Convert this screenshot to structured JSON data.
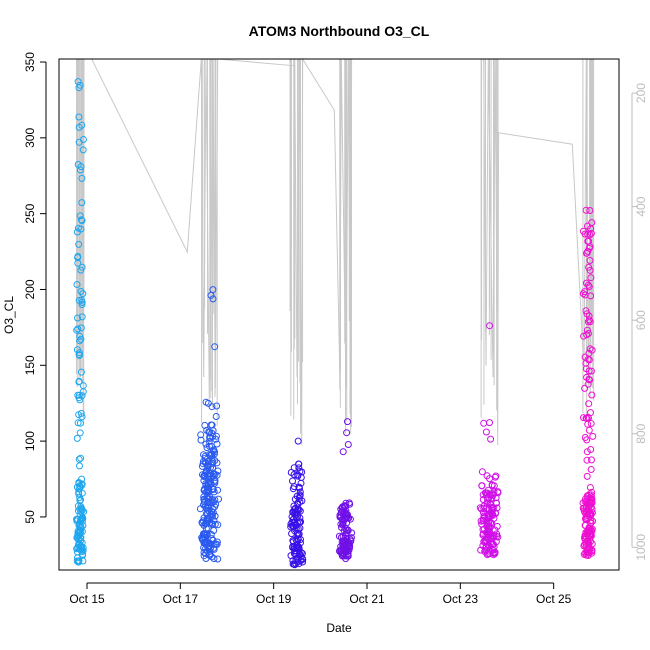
{
  "chart_data": {
    "type": "scatter",
    "title": "ATOM3 Northbound O3_CL",
    "xlabel": "Date",
    "ylabel": "O3_CL",
    "y_ticks": [
      50,
      100,
      150,
      200,
      250,
      300,
      350
    ],
    "ylim": [
      15,
      352
    ],
    "x_ticks": [
      {
        "label": "Oct 15",
        "day": 15
      },
      {
        "label": "Oct 17",
        "day": 17
      },
      {
        "label": "Oct 19",
        "day": 19
      },
      {
        "label": "Oct 21",
        "day": 21
      },
      {
        "label": "Oct 23",
        "day": 23
      },
      {
        "label": "Oct 25",
        "day": 25
      }
    ],
    "xlim_day": [
      14.4,
      26.4
    ],
    "right_axis": {
      "ticks": [
        200,
        400,
        600,
        800,
        1000
      ],
      "lim_top": 140,
      "lim_bottom": 1040,
      "inverted": true,
      "color": "#bdbdbd"
    },
    "grid": false,
    "pressure_trace_color": "#c8c8c8",
    "series": [
      {
        "color": "#1ea6ef",
        "day_range": [
          14.76,
          14.94
        ],
        "clusters": [
          {
            "n": 70,
            "min": 20,
            "max": 55
          },
          {
            "n": 20,
            "min": 55,
            "max": 75
          },
          {
            "n": 45,
            "min": 80,
            "max": 230
          },
          {
            "n": 20,
            "min": 230,
            "max": 342
          }
        ]
      },
      {
        "color": "#2a5aef",
        "day_range": [
          17.42,
          17.82
        ],
        "clusters": [
          {
            "n": 130,
            "min": 22,
            "max": 70
          },
          {
            "n": 80,
            "min": 70,
            "max": 108
          },
          {
            "n": 8,
            "min": 110,
            "max": 135
          },
          {
            "n": 4,
            "min": 160,
            "max": 207
          }
        ]
      },
      {
        "color": "#3810e8",
        "day_range": [
          19.35,
          19.64
        ],
        "clusters": [
          {
            "n": 90,
            "min": 18,
            "max": 60
          },
          {
            "n": 25,
            "min": 60,
            "max": 85
          },
          {
            "n": 1,
            "min": 100,
            "max": 101
          }
        ]
      },
      {
        "color": "#7010e8",
        "day_range": [
          20.38,
          20.68
        ],
        "clusters": [
          {
            "n": 100,
            "min": 22,
            "max": 60
          },
          {
            "n": 4,
            "min": 92,
            "max": 120
          }
        ]
      },
      {
        "color": "#d010e8",
        "day_range": [
          23.42,
          23.82
        ],
        "clusters": [
          {
            "n": 130,
            "min": 25,
            "max": 68
          },
          {
            "n": 10,
            "min": 68,
            "max": 80
          },
          {
            "n": 4,
            "min": 88,
            "max": 113
          },
          {
            "n": 1,
            "min": 176,
            "max": 177
          }
        ]
      },
      {
        "color": "#ee10d2",
        "day_range": [
          25.62,
          25.86
        ],
        "clusters": [
          {
            "n": 120,
            "min": 24,
            "max": 65
          },
          {
            "n": 30,
            "min": 65,
            "max": 150
          },
          {
            "n": 45,
            "min": 150,
            "max": 253
          }
        ]
      }
    ]
  }
}
